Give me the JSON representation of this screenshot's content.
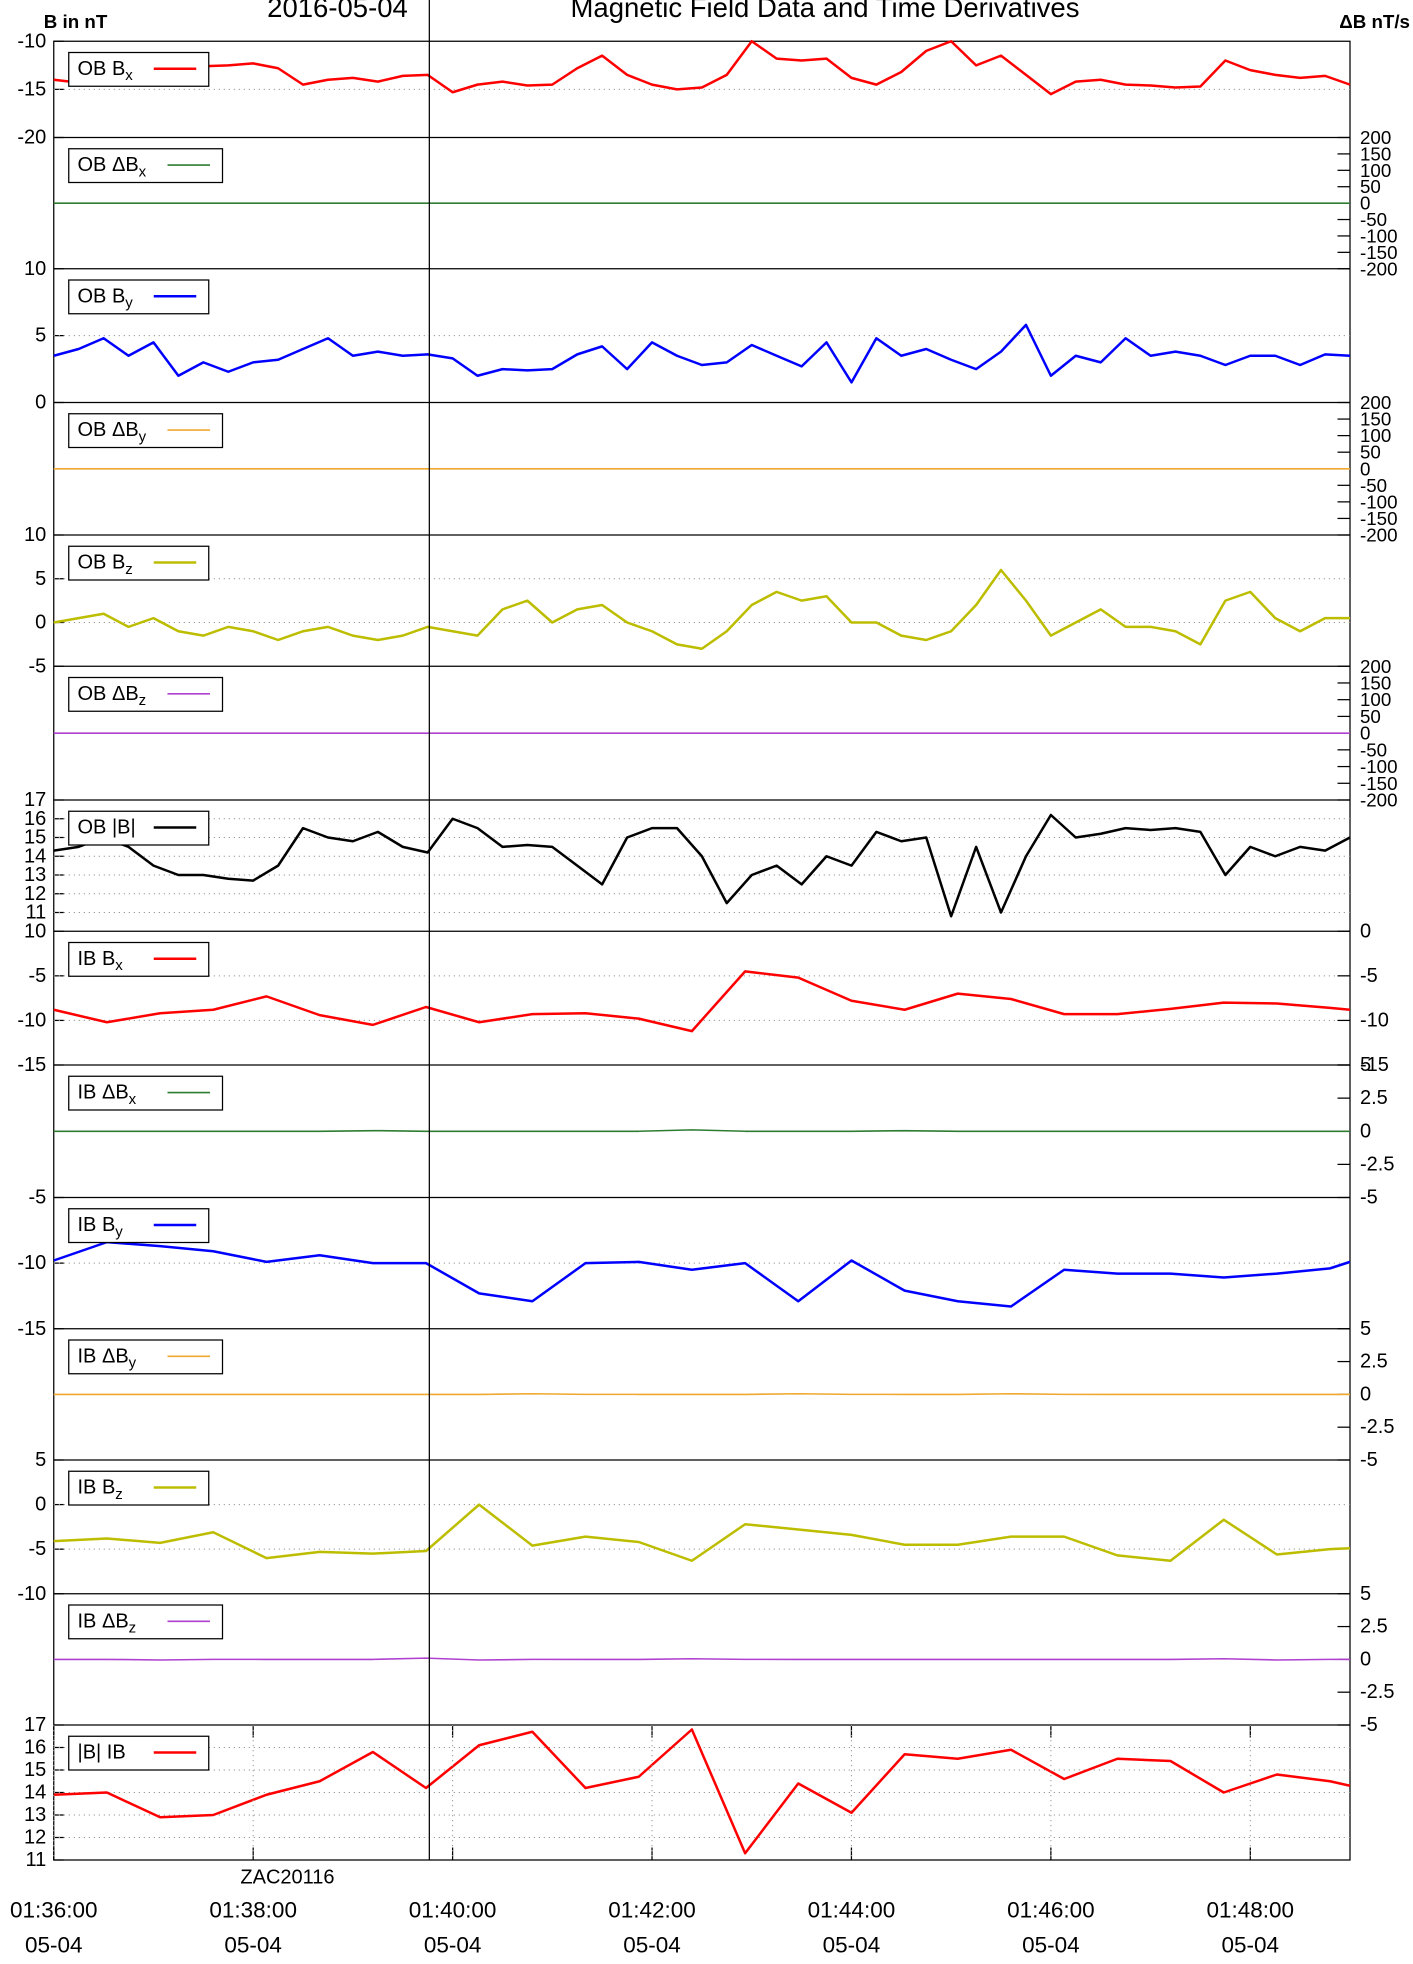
{
  "chart_data": {
    "type": "line",
    "title": "Magnetic Field Data and Time Derivatives",
    "date": "2016-05-04",
    "ylabel": "B in nT",
    "y2label": "ΔB nT/s",
    "annotation": "ZAC20116",
    "marker_time": "01:39:46",
    "grid": true,
    "xlim": [
      "01:36:00",
      "01:49:00"
    ],
    "xticks": [
      "01:36:00",
      "01:38:00",
      "01:40:00",
      "01:42:00",
      "01:44:00",
      "01:46:00",
      "01:48:00"
    ],
    "xtick_dates": [
      "05-04",
      "05-04",
      "05-04",
      "05-04",
      "05-04",
      "05-04",
      "05-04"
    ],
    "groups": [
      {
        "x": [
          "01:36:00",
          "01:36:15",
          "01:36:30",
          "01:36:45",
          "01:37:00",
          "01:37:15",
          "01:37:30",
          "01:37:45",
          "01:38:00",
          "01:38:15",
          "01:38:30",
          "01:38:45",
          "01:39:00",
          "01:39:15",
          "01:39:30",
          "01:39:45",
          "01:40:00",
          "01:40:15",
          "01:40:30",
          "01:40:45",
          "01:41:00",
          "01:41:15",
          "01:41:30",
          "01:41:45",
          "01:42:00",
          "01:42:15",
          "01:42:30",
          "01:42:45",
          "01:43:00",
          "01:43:15",
          "01:43:30",
          "01:43:45",
          "01:44:00",
          "01:44:15",
          "01:44:30",
          "01:44:45",
          "01:45:00",
          "01:45:15",
          "01:45:30",
          "01:45:45",
          "01:46:00",
          "01:46:15",
          "01:46:30",
          "01:46:45",
          "01:47:00",
          "01:47:15",
          "01:47:30",
          "01:47:45",
          "01:48:00",
          "01:48:15",
          "01:48:30",
          "01:48:45",
          "01:49:00"
        ],
        "panels": [
          {
            "name": "OB B",
            "sub": "x",
            "color": "#ff0000",
            "ylim": [
              -20,
              -10
            ],
            "yticks": [
              -20,
              -15,
              -10
            ],
            "values": [
              -14,
              -14.3,
              -13.5,
              -13.2,
              -12.8,
              -13,
              -12.6,
              -12.5,
              -12.3,
              -12.8,
              -14.5,
              -14,
              -13.8,
              -14.2,
              -13.6,
              -13.5,
              -15.3,
              -14.5,
              -14.2,
              -14.6,
              -14.5,
              -12.8,
              -11.5,
              -13.5,
              -14.5,
              -15,
              -14.8,
              -13.5,
              -10,
              -11.8,
              -12,
              -11.8,
              -13.8,
              -14.5,
              -13.2,
              -11,
              -10,
              -12.5,
              -11.5,
              -13.5,
              -15.5,
              -14.2,
              -14,
              -14.5,
              -14.6,
              -14.8,
              -14.7,
              -12,
              -13,
              -13.5,
              -13.8,
              -13.6,
              -14.5
            ]
          },
          {
            "name": "OB ΔB",
            "sub": "x",
            "color": "#2e7d32",
            "axis": "y2",
            "y2lim": [
              -200,
              200
            ],
            "y2ticks": [
              200,
              150,
              100,
              50,
              0,
              -50,
              -100,
              -150,
              -200
            ],
            "values": [
              0,
              0,
              0,
              0,
              0,
              0,
              0,
              0,
              0,
              0,
              0,
              0,
              0,
              0,
              0,
              0,
              0,
              0,
              0,
              0,
              0,
              0,
              0,
              0,
              0,
              0,
              0,
              0,
              0,
              0,
              0,
              0,
              0,
              0,
              0,
              0,
              0,
              0,
              0,
              0,
              0,
              0,
              0,
              0,
              0,
              0,
              0,
              0,
              0,
              0,
              0,
              0,
              0
            ]
          },
          {
            "name": "OB B",
            "sub": "y",
            "color": "#0000ff",
            "ylim": [
              0,
              10
            ],
            "yticks": [
              0,
              5,
              10
            ],
            "values": [
              3.5,
              4,
              4.8,
              3.5,
              4.5,
              2,
              3,
              2.3,
              3,
              3.2,
              4,
              4.8,
              3.5,
              3.8,
              3.5,
              3.6,
              3.3,
              2,
              2.5,
              2.4,
              2.5,
              3.6,
              4.2,
              2.5,
              4.5,
              3.5,
              2.8,
              3,
              4.3,
              3.5,
              2.7,
              4.5,
              1.5,
              4.8,
              3.5,
              4,
              3.2,
              2.5,
              3.8,
              5.8,
              2,
              3.5,
              3,
              4.8,
              3.5,
              3.8,
              3.5,
              2.8,
              3.5,
              3.5,
              2.8,
              3.6,
              3.5
            ]
          },
          {
            "name": "OB ΔB",
            "sub": "y",
            "color": "#f0a830",
            "axis": "y2",
            "y2lim": [
              -200,
              200
            ],
            "y2ticks": [
              200,
              150,
              100,
              50,
              0,
              -50,
              -100,
              -150,
              -200
            ],
            "values": [
              0,
              0,
              0,
              0,
              0,
              0,
              0,
              0,
              0,
              0,
              0,
              0,
              0,
              0,
              0,
              0,
              0,
              0,
              0,
              0,
              0,
              0,
              0,
              0,
              0,
              0,
              0,
              0,
              0,
              0,
              0,
              0,
              0,
              0,
              0,
              0,
              0,
              0,
              0,
              0,
              0,
              0,
              0,
              0,
              0,
              0,
              0,
              0,
              0,
              0,
              0,
              0,
              0
            ]
          },
          {
            "name": "OB B",
            "sub": "z",
            "color": "#bdbd00",
            "ylim": [
              -5,
              10
            ],
            "yticks": [
              -5,
              0,
              5,
              10
            ],
            "values": [
              0,
              0.5,
              1,
              -0.5,
              0.5,
              -1,
              -1.5,
              -0.5,
              -1,
              -2,
              -1,
              -0.5,
              -1.5,
              -2,
              -1.5,
              -0.5,
              -1,
              -1.5,
              1.5,
              2.5,
              0,
              1.5,
              2,
              0,
              -1,
              -2.5,
              -3,
              -1,
              2,
              3.5,
              2.5,
              3,
              0,
              0,
              -1.5,
              -2,
              -1,
              2,
              6,
              2.5,
              -1.5,
              0,
              1.5,
              -0.5,
              -0.5,
              -1,
              -2.5,
              2.5,
              3.5,
              0.5,
              -1,
              0.5,
              0.5
            ]
          },
          {
            "name": "OB ΔB",
            "sub": "z",
            "color": "#b040d0",
            "axis": "y2",
            "y2lim": [
              -200,
              200
            ],
            "y2ticks": [
              200,
              150,
              100,
              50,
              0,
              -50,
              -100,
              -150,
              -200
            ],
            "values": [
              0,
              0,
              0,
              0,
              0,
              0,
              0,
              0,
              0,
              0,
              0,
              0,
              0,
              0,
              0,
              0,
              0,
              0,
              0,
              0,
              0,
              0,
              0,
              0,
              0,
              0,
              0,
              0,
              0,
              0,
              0,
              0,
              0,
              0,
              0,
              0,
              0,
              0,
              0,
              0,
              0,
              0,
              0,
              0,
              0,
              0,
              0,
              0,
              0,
              0,
              0,
              0,
              0
            ]
          },
          {
            "name": "OB |B|",
            "color": "#000000",
            "ylim": [
              10,
              17
            ],
            "yticks": [
              10,
              11,
              12,
              13,
              14,
              15,
              16,
              17
            ],
            "values": [
              14.3,
              14.5,
              15,
              14.5,
              13.5,
              13,
              13,
              12.8,
              12.7,
              13.5,
              15.5,
              15,
              14.8,
              15.3,
              14.5,
              14.2,
              16,
              15.5,
              14.5,
              14.6,
              14.5,
              13.5,
              12.5,
              15,
              15.5,
              15.5,
              14,
              11.5,
              13,
              13.5,
              12.5,
              14,
              13.5,
              15.3,
              14.8,
              15,
              10.8,
              14.5,
              11,
              14,
              16.2,
              15,
              15.2,
              15.5,
              15.4,
              15.5,
              15.3,
              13,
              14.5,
              14,
              14.5,
              14.3,
              15
            ]
          }
        ]
      },
      {
        "x": [
          "01:36:00",
          "01:36:32",
          "01:37:04",
          "01:37:36",
          "01:38:08",
          "01:38:40",
          "01:39:12",
          "01:39:44",
          "01:40:16",
          "01:40:48",
          "01:41:20",
          "01:41:52",
          "01:42:24",
          "01:42:56",
          "01:43:28",
          "01:44:00",
          "01:44:32",
          "01:45:04",
          "01:45:36",
          "01:46:08",
          "01:46:40",
          "01:47:12",
          "01:47:44",
          "01:48:16",
          "01:48:48",
          "01:49:00"
        ],
        "panels": [
          {
            "name": "IB B",
            "sub": "x",
            "color": "#ff0000",
            "ylim": [
              -15,
              0
            ],
            "yticks": [
              -15,
              -10,
              -5
            ],
            "y2ticks": [
              0,
              -5,
              -10,
              -15
            ],
            "values": [
              -8.8,
              -10.2,
              -9.2,
              -8.8,
              -7.3,
              -9.4,
              -10.5,
              -8.5,
              -10.2,
              -9.3,
              -9.2,
              -9.8,
              -11.2,
              -4.5,
              -5.2,
              -7.8,
              -8.8,
              -7,
              -7.6,
              -9.3,
              -9.3,
              -8.7,
              -8,
              -8.1,
              -8.6,
              -8.8
            ]
          },
          {
            "name": "IB ΔB",
            "sub": "x",
            "color": "#2e7d32",
            "axis": "y2",
            "y2lim": [
              -5,
              5
            ],
            "y2ticks": [
              5,
              2.5,
              0,
              -2.5,
              -5
            ],
            "values": [
              0,
              0,
              0,
              0,
              0,
              0,
              0.05,
              0,
              0,
              0,
              0,
              0,
              0.1,
              0,
              0,
              0,
              0.05,
              0,
              0,
              0,
              0,
              0,
              0,
              0,
              0,
              0
            ]
          },
          {
            "name": "IB B",
            "sub": "y",
            "color": "#0000ff",
            "ylim": [
              -15,
              -5
            ],
            "yticks": [
              -15,
              -10,
              -5
            ],
            "values": [
              -9.8,
              -8.4,
              -8.7,
              -9.1,
              -9.9,
              -9.4,
              -10,
              -10,
              -12.3,
              -12.9,
              -10,
              -9.9,
              -10.5,
              -10,
              -12.9,
              -9.8,
              -12.1,
              -12.9,
              -13.3,
              -10.5,
              -10.8,
              -10.8,
              -11.1,
              -10.8,
              -10.4,
              -9.9
            ]
          },
          {
            "name": "IB ΔB",
            "sub": "y",
            "color": "#f0a830",
            "axis": "y2",
            "y2lim": [
              -5,
              5
            ],
            "y2ticks": [
              5,
              2.5,
              0,
              -2.5,
              -5
            ],
            "values": [
              0,
              0,
              0,
              0,
              0,
              0,
              0,
              0,
              0,
              0.05,
              0,
              0,
              0,
              0,
              0.05,
              0,
              0,
              0,
              0.05,
              0,
              0,
              0,
              0,
              0,
              0,
              0
            ]
          },
          {
            "name": "IB B",
            "sub": "z",
            "color": "#bdbd00",
            "ylim": [
              -10,
              5
            ],
            "yticks": [
              -10,
              -5,
              0,
              5
            ],
            "values": [
              -4.1,
              -3.8,
              -4.3,
              -3.1,
              -6,
              -5.3,
              -5.5,
              -5.2,
              0,
              -4.6,
              -3.6,
              -4.2,
              -6.3,
              -2.2,
              -2.8,
              -3.4,
              -4.5,
              -4.5,
              -3.6,
              -3.6,
              -5.7,
              -6.3,
              -1.7,
              -5.6,
              -5,
              -4.9
            ]
          },
          {
            "name": "IB ΔB",
            "sub": "z",
            "color": "#b040d0",
            "axis": "y2",
            "y2lim": [
              -5,
              5
            ],
            "y2ticks": [
              5,
              2.5,
              0,
              -2.5,
              -5
            ],
            "values": [
              0,
              0,
              -0.05,
              0,
              0,
              0,
              0,
              0.1,
              -0.05,
              0,
              0,
              0,
              0.05,
              0,
              0,
              0,
              0,
              0,
              0,
              0,
              0,
              0,
              0.05,
              -0.05,
              0,
              0
            ]
          },
          {
            "name": "|B| IB",
            "color": "#ff0000",
            "ylim": [
              11,
              17
            ],
            "yticks": [
              11,
              12,
              13,
              14,
              15,
              16,
              17
            ],
            "values": [
              13.9,
              14,
              12.9,
              13,
              13.9,
              14.5,
              15.8,
              14.2,
              16.1,
              16.7,
              14.2,
              14.7,
              16.8,
              11.3,
              14.4,
              13.1,
              15.7,
              15.5,
              15.9,
              14.6,
              15.5,
              15.4,
              14,
              14.8,
              14.5,
              14.3
            ]
          }
        ]
      }
    ]
  }
}
